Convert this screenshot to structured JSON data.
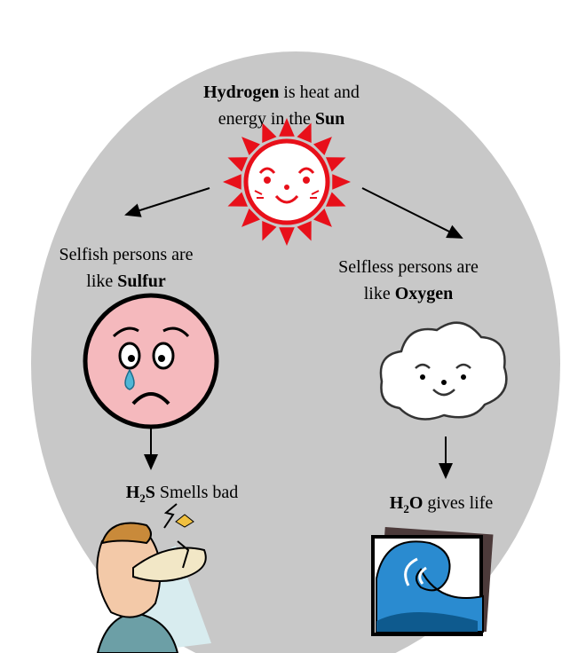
{
  "top": {
    "parts": [
      "Hydrogen",
      "is heat and",
      "energy in the",
      "Sun"
    ]
  },
  "left": {
    "parts": [
      "Selfish persons are",
      "like",
      "Sulfur"
    ]
  },
  "right": {
    "parts": [
      "Selfless persons are",
      "like",
      "Oxygen"
    ]
  },
  "left_result": {
    "parts": [
      "H",
      "2",
      "S",
      "Smells bad"
    ]
  },
  "right_result": {
    "parts": [
      "H",
      "2",
      "O",
      "gives life"
    ]
  }
}
